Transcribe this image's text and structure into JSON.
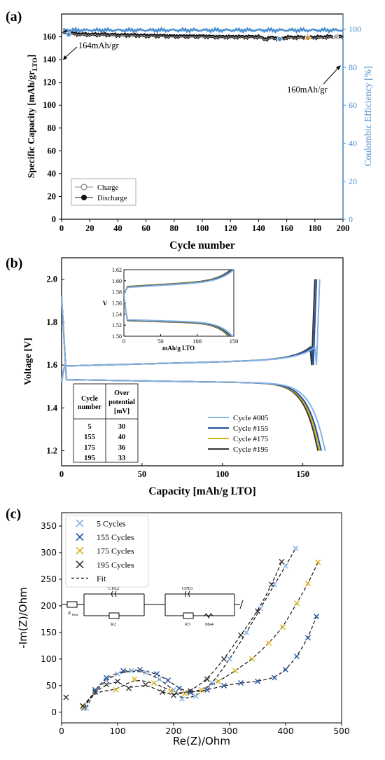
{
  "panels": {
    "a": {
      "letter": "(a)"
    },
    "b": {
      "letter": "(b)"
    },
    "c": {
      "letter": "(c)"
    }
  },
  "colors": {
    "charge": "#9a9a9a",
    "discharge": "#111111",
    "efficiency": "#4a8fd1",
    "marker_blue": "#4a8fd1",
    "marker_orange": "#e0892a",
    "cycle005": "#86b3e6",
    "cycle155": "#1f4f9f",
    "cycle175": "#d9b21a",
    "cycle195": "#333333",
    "fit": "#111111"
  },
  "chart_data": [
    {
      "id": "a",
      "type": "line",
      "xlabel": "Cycle number",
      "ylabel": "Specific Capacity [mAh/gr",
      "ylabel_sub": "LTO",
      "ylabel_tail": "]",
      "ylabel_right": "Coulombic Efficiency [%]",
      "xlim": [
        0,
        200
      ],
      "ylim": [
        0,
        180
      ],
      "ylim_right": [
        0,
        108
      ],
      "xticks": [
        0,
        20,
        40,
        60,
        80,
        100,
        120,
        140,
        160,
        180,
        200
      ],
      "yticks": [
        0,
        20,
        40,
        60,
        80,
        100,
        120,
        140,
        160
      ],
      "yticks_right": [
        0,
        20,
        40,
        60,
        80,
        100
      ],
      "legend": [
        {
          "label": "Charge",
          "marker": "open-circle"
        },
        {
          "label": "Discharge",
          "marker": "filled-circle"
        }
      ],
      "legend_position": "bottom-left",
      "annotations": [
        {
          "text": "164mAh/gr",
          "x": 1,
          "y": 164
        },
        {
          "text": "160mAh/gr",
          "x": 199,
          "y": 160
        }
      ],
      "highlight_points": [
        {
          "x": 5,
          "y": 162,
          "color": "blue"
        },
        {
          "x": 155,
          "y": 158,
          "color": "blue"
        },
        {
          "x": 175,
          "y": 159,
          "color": "orange"
        },
        {
          "x": 195,
          "y": 160,
          "color": "gray"
        }
      ],
      "series": [
        {
          "name": "Charge",
          "x": [
            1,
            10,
            20,
            30,
            40,
            50,
            60,
            70,
            80,
            90,
            100,
            110,
            120,
            130,
            140,
            145,
            150,
            155,
            160,
            170,
            180,
            190,
            200
          ],
          "y": [
            164,
            162.5,
            162,
            162,
            161.5,
            161.5,
            161,
            161,
            160.5,
            160.5,
            160.5,
            160,
            160,
            160,
            160,
            158,
            159.5,
            158,
            159.5,
            159.5,
            159.5,
            160,
            160
          ]
        },
        {
          "name": "Discharge",
          "x": [
            1,
            10,
            20,
            30,
            40,
            50,
            60,
            70,
            80,
            90,
            100,
            110,
            120,
            130,
            140,
            145,
            150,
            155,
            160,
            170,
            180,
            190,
            200
          ],
          "y": [
            164,
            162.5,
            162,
            162,
            161.5,
            161.5,
            161,
            161,
            160.5,
            160.5,
            160.5,
            160,
            160,
            160,
            160,
            158,
            159.5,
            158,
            159.5,
            159.5,
            159.5,
            160,
            160
          ]
        },
        {
          "name": "Coulombic Efficiency",
          "x": [
            1,
            200
          ],
          "y": [
            99.5,
            99.5
          ]
        }
      ]
    },
    {
      "id": "b",
      "type": "line",
      "xlabel": "Capacity [mAh/g LTO]",
      "ylabel": "Voltage [V]",
      "xlim": [
        0,
        175
      ],
      "ylim": [
        1.13,
        2.1
      ],
      "xticks": [
        0,
        50,
        100,
        150
      ],
      "yticks": [
        1.2,
        1.4,
        1.6,
        1.8,
        2.0
      ],
      "legend_position": "bottom-right",
      "series": [
        {
          "name": "Cycle #005",
          "color_key": "cycle005",
          "charge_end": 160.5,
          "discharge_end": 164
        },
        {
          "name": "Cycle #155",
          "color_key": "cycle155",
          "charge_end": 158.5,
          "discharge_end": 161.5
        },
        {
          "name": "Cycle #175",
          "color_key": "cycle175",
          "charge_end": 158.5,
          "discharge_end": 160.5
        },
        {
          "name": "Cycle #195",
          "color_key": "cycle195",
          "charge_end": 157.5,
          "discharge_end": 159.5
        }
      ],
      "table": {
        "headers": [
          [
            "Cycle",
            "number"
          ],
          [
            "Over",
            "potential",
            "[mV]"
          ]
        ],
        "rows": [
          [
            "5",
            "30"
          ],
          [
            "155",
            "40"
          ],
          [
            "175",
            "36"
          ],
          [
            "195",
            "33"
          ]
        ]
      },
      "inset": {
        "xlabel": "mAh/g LTO",
        "ylabel": "V",
        "xlim": [
          0,
          150
        ],
        "ylim": [
          1.5,
          1.62
        ],
        "xticks": [
          0,
          50,
          100,
          150
        ],
        "yticks": [
          1.5,
          1.52,
          1.54,
          1.56,
          1.58,
          1.6,
          1.62
        ]
      }
    },
    {
      "id": "c",
      "type": "scatter",
      "xlabel": "Re(Z)/Ohm",
      "ylabel": "-Im(Z)/Ohm",
      "xlim": [
        0,
        500
      ],
      "ylim": [
        -20,
        375
      ],
      "xticks": [
        0,
        100,
        200,
        300,
        400,
        500
      ],
      "yticks": [
        0,
        50,
        100,
        150,
        200,
        250,
        300,
        350
      ],
      "legend_position": "top-left",
      "series": [
        {
          "name": "5 Cycles",
          "color_key": "cycle005",
          "x": [
            44,
            60,
            80,
            100,
            125,
            150,
            175,
            200,
            215,
            240,
            270,
            300,
            330,
            355,
            380,
            400,
            418
          ],
          "y": [
            8,
            40,
            60,
            72,
            78,
            75,
            62,
            42,
            25,
            30,
            55,
            100,
            150,
            195,
            240,
            275,
            308
          ]
        },
        {
          "name": "155 Cycles",
          "color_key": "cycle155",
          "x": [
            40,
            60,
            80,
            110,
            140,
            170,
            190,
            210,
            230,
            260,
            290,
            320,
            350,
            380,
            400,
            420,
            440,
            455
          ],
          "y": [
            8,
            42,
            65,
            78,
            80,
            72,
            60,
            45,
            37,
            42,
            50,
            55,
            58,
            65,
            80,
            105,
            140,
            180
          ]
        },
        {
          "name": "175 Cycles",
          "color_key": "cycle175",
          "x": [
            38,
            60,
            97,
            130,
            165,
            195,
            220,
            250,
            280,
            310,
            340,
            370,
            395,
            420,
            440,
            458
          ],
          "y": [
            10,
            38,
            42,
            62,
            55,
            40,
            35,
            42,
            58,
            78,
            100,
            130,
            160,
            205,
            242,
            282
          ]
        },
        {
          "name": "195 Cycles",
          "color_key": "cycle195",
          "x": [
            8,
            38,
            60,
            80,
            100,
            120,
            150,
            180,
            200,
            230,
            260,
            290,
            320,
            350,
            375,
            393
          ],
          "y": [
            28,
            12,
            38,
            52,
            58,
            45,
            52,
            38,
            32,
            40,
            62,
            100,
            145,
            190,
            240,
            283
          ]
        },
        {
          "name": "Fit",
          "style": "dashed"
        }
      ],
      "circuit": {
        "labels": [
          "R",
          "Bulk",
          "CPE2",
          "R2",
          "CPE3",
          "R3",
          "Ma4"
        ]
      }
    }
  ]
}
